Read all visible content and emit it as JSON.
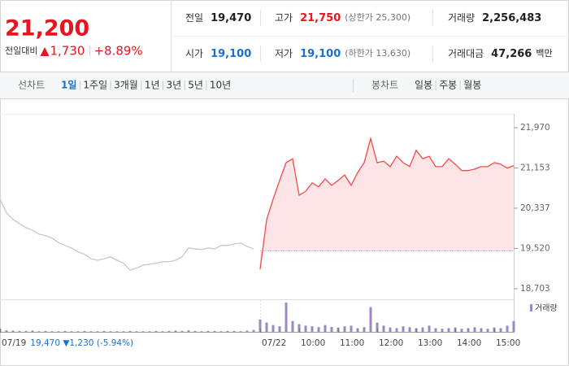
{
  "quote": {
    "price": "21,200",
    "change_label": "전일대비",
    "change": "1,730",
    "change_pct": "+8.89%",
    "color": "#e8141f"
  },
  "info": [
    {
      "label": "전일",
      "value": "19,470"
    },
    {
      "label": "고가",
      "value": "21,750",
      "color": "#e8141f",
      "note": "(상한가 25,300)"
    },
    {
      "label": "거래량",
      "value": "2,256,483"
    },
    {
      "label": "시가",
      "value": "19,100",
      "color": "#1b6fd0"
    },
    {
      "label": "저가",
      "value": "19,100",
      "color": "#1b6fd0",
      "note": "(하한가 13,630)"
    },
    {
      "label": "거래대금",
      "value": "47,266",
      "note": "백만"
    }
  ],
  "tabs": {
    "line_label": "선차트",
    "line_periods": [
      "1일",
      "1주일",
      "3개월",
      "1년",
      "3년",
      "5년",
      "10년"
    ],
    "active": 0,
    "candle_label": "봉차트",
    "candle_periods": [
      "일봉",
      "주봉",
      "월봉"
    ]
  },
  "chart_data": {
    "type": "line",
    "categories": [
      "07/19",
      null,
      null,
      null,
      null,
      null,
      null,
      null,
      null,
      null,
      null,
      null,
      null,
      null,
      null,
      null,
      null,
      null,
      null,
      null,
      null,
      null,
      null,
      null,
      null,
      null,
      null,
      null,
      null,
      null,
      null,
      null,
      null,
      null,
      null,
      null,
      null,
      null,
      null,
      null,
      "07/22",
      null,
      null,
      null,
      null,
      null,
      "10:00",
      null,
      null,
      null,
      null,
      null,
      "11:00",
      null,
      null,
      null,
      null,
      null,
      "12:00",
      null,
      null,
      null,
      null,
      null,
      "13:00",
      null,
      null,
      null,
      null,
      null,
      "14:00",
      null,
      null,
      null,
      null,
      null,
      "15:00",
      null,
      null,
      null
    ],
    "prev_summary": "19,470 ▼1,230 (-5.94%)",
    "series": [
      {
        "color": "#c8c8c8",
        "values": [
          20520,
          20240,
          20110,
          20020,
          19940,
          19890,
          19810,
          19780,
          19730,
          19640,
          19580,
          19530,
          19450,
          19400,
          19310,
          19280,
          19310,
          19350,
          19280,
          19220,
          19080,
          19120,
          19180,
          19200,
          19220,
          19250,
          19250,
          19280,
          19350,
          19530,
          19510,
          19500,
          19530,
          19510,
          19580,
          19580,
          19610,
          19630,
          19560,
          19510,
          null,
          null,
          null,
          null,
          null,
          null,
          null,
          null,
          null,
          null,
          null,
          null,
          null,
          null,
          null,
          null,
          null,
          null,
          null,
          null,
          null,
          null,
          null,
          null,
          null,
          null,
          null,
          null,
          null,
          null,
          null,
          null,
          null,
          null,
          null,
          null,
          null,
          null,
          null,
          null
        ]
      },
      {
        "color": "#f24b4b",
        "fill": "#fde4e6",
        "values": [
          null,
          null,
          null,
          null,
          null,
          null,
          null,
          null,
          null,
          null,
          null,
          null,
          null,
          null,
          null,
          null,
          null,
          null,
          null,
          null,
          null,
          null,
          null,
          null,
          null,
          null,
          null,
          null,
          null,
          null,
          null,
          null,
          null,
          null,
          null,
          null,
          null,
          null,
          null,
          null,
          19100,
          20100,
          20520,
          20900,
          21260,
          21340,
          20600,
          20680,
          20850,
          20770,
          20930,
          20800,
          20900,
          21010,
          20800,
          21060,
          21260,
          21750,
          21260,
          21290,
          21180,
          21390,
          21260,
          21180,
          21510,
          21340,
          21390,
          21180,
          21180,
          21340,
          21230,
          21100,
          21100,
          21130,
          21180,
          21180,
          21260,
          21230,
          21150,
          21200
        ]
      },
      {
        "name": "거래량",
        "type": "bar",
        "axis": "y2",
        "color": "#9b87c9",
        "values": [
          8,
          5,
          4,
          3,
          3,
          4,
          2,
          3,
          2,
          2,
          3,
          2,
          2,
          3,
          2,
          2,
          3,
          2,
          2,
          2,
          3,
          2,
          2,
          2,
          3,
          2,
          3,
          4,
          3,
          5,
          3,
          2,
          3,
          3,
          2,
          3,
          3,
          2,
          4,
          6,
          40,
          30,
          22,
          18,
          95,
          35,
          25,
          20,
          18,
          15,
          22,
          16,
          14,
          18,
          20,
          12,
          15,
          80,
          30,
          20,
          14,
          12,
          18,
          15,
          12,
          14,
          20,
          12,
          10,
          12,
          14,
          10,
          12,
          15,
          12,
          10,
          14,
          12,
          20,
          35
        ]
      }
    ],
    "baseline": 19470,
    "ylim": [
      18455,
      22250
    ],
    "yticks": [
      {
        "value": 21970,
        "label": "21,970"
      },
      {
        "value": 21153,
        "label": "21,153"
      },
      {
        "value": 20337,
        "label": "20,337"
      },
      {
        "value": 19520,
        "label": "19,520"
      },
      {
        "value": 18703,
        "label": "18,703"
      }
    ],
    "y2lim": [
      0,
      100
    ]
  }
}
